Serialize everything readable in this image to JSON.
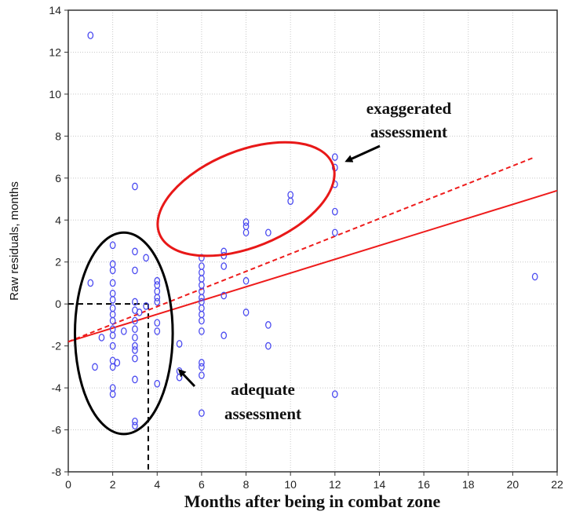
{
  "chart_data": {
    "type": "scatter",
    "xlabel": "Months after being in combat zone",
    "ylabel": "Raw residuals, months",
    "xlim": [
      0,
      22
    ],
    "ylim": [
      -8,
      14
    ],
    "xticks": [
      "0",
      "2",
      "4",
      "6",
      "8",
      "10",
      "12",
      "14",
      "16",
      "18",
      "20",
      "22"
    ],
    "yticks": [
      "-8",
      "-6",
      "-4",
      "-2",
      "0",
      "2",
      "4",
      "6",
      "8",
      "10",
      "12",
      "14"
    ],
    "grid": true,
    "colors": {
      "points": "#4b4bf0",
      "fit_lines": "#ee1c1c",
      "adequate_ellipse": "#000000",
      "exaggerated_ellipse": "#e81818"
    },
    "points": [
      [
        1,
        12.8
      ],
      [
        1,
        1.0
      ],
      [
        1.2,
        -3.0
      ],
      [
        1.5,
        -1.6
      ],
      [
        2,
        2.8
      ],
      [
        2,
        1.9
      ],
      [
        2,
        1.6
      ],
      [
        2,
        1.0
      ],
      [
        2,
        0.5
      ],
      [
        2,
        0.2
      ],
      [
        2,
        -0.2
      ],
      [
        2,
        -0.5
      ],
      [
        2,
        -0.8
      ],
      [
        2,
        -1.2
      ],
      [
        2,
        -1.5
      ],
      [
        2,
        -2.0
      ],
      [
        2,
        -2.7
      ],
      [
        2,
        -3.0
      ],
      [
        2,
        -4.0
      ],
      [
        2,
        -4.3
      ],
      [
        2.2,
        -2.8
      ],
      [
        2.5,
        -1.3
      ],
      [
        3,
        5.6
      ],
      [
        3,
        2.5
      ],
      [
        3,
        1.6
      ],
      [
        3,
        0.1
      ],
      [
        3,
        -0.3
      ],
      [
        3,
        -0.8
      ],
      [
        3,
        -1.2
      ],
      [
        3,
        -1.6
      ],
      [
        3,
        -2.0
      ],
      [
        3,
        -2.2
      ],
      [
        3,
        -2.6
      ],
      [
        3,
        -3.6
      ],
      [
        3,
        -5.6
      ],
      [
        3,
        -5.8
      ],
      [
        3.2,
        -0.4
      ],
      [
        3.5,
        -0.1
      ],
      [
        3.5,
        2.2
      ],
      [
        4,
        1.1
      ],
      [
        4,
        0.9
      ],
      [
        4,
        0.6
      ],
      [
        4,
        0.3
      ],
      [
        4,
        0.1
      ],
      [
        4,
        -0.9
      ],
      [
        4,
        -1.3
      ],
      [
        4,
        -3.8
      ],
      [
        5,
        -3.2
      ],
      [
        5,
        -3.5
      ],
      [
        5,
        -1.9
      ],
      [
        6,
        2.2
      ],
      [
        6,
        1.8
      ],
      [
        6,
        1.5
      ],
      [
        6,
        1.2
      ],
      [
        6,
        0.9
      ],
      [
        6,
        0.6
      ],
      [
        6,
        0.3
      ],
      [
        6,
        0.1
      ],
      [
        6,
        -0.2
      ],
      [
        6,
        -0.5
      ],
      [
        6,
        -0.8
      ],
      [
        6,
        -1.3
      ],
      [
        6,
        -2.8
      ],
      [
        6,
        -3.0
      ],
      [
        6,
        -3.4
      ],
      [
        6,
        -5.2
      ],
      [
        7,
        2.5
      ],
      [
        7,
        2.3
      ],
      [
        7,
        1.8
      ],
      [
        7,
        0.4
      ],
      [
        7,
        -1.5
      ],
      [
        8,
        3.9
      ],
      [
        8,
        3.7
      ],
      [
        8,
        3.4
      ],
      [
        8,
        1.1
      ],
      [
        8,
        -0.4
      ],
      [
        9,
        3.4
      ],
      [
        9,
        -1.0
      ],
      [
        9,
        -2.0
      ],
      [
        10,
        5.2
      ],
      [
        10,
        4.9
      ],
      [
        12,
        7.0
      ],
      [
        12,
        6.5
      ],
      [
        12,
        5.7
      ],
      [
        12,
        4.4
      ],
      [
        12,
        3.4
      ],
      [
        12,
        -4.3
      ],
      [
        21,
        1.3
      ]
    ],
    "fit_lines": [
      {
        "style": "solid",
        "x": [
          0,
          22
        ],
        "y": [
          -1.8,
          5.4
        ]
      },
      {
        "style": "dashed",
        "x": [
          0,
          21
        ],
        "y": [
          -1.8,
          7.0
        ]
      }
    ],
    "reference_lines": {
      "x": 3.6,
      "y": 0
    },
    "annotations": [
      {
        "lines": [
          "exaggerated",
          "assessment"
        ],
        "region": {
          "cx": 8.0,
          "cy": 5.0,
          "rx": 4.2,
          "ry": 2.3,
          "rotate": -22
        }
      },
      {
        "lines": [
          "adequate",
          "assessment"
        ],
        "region": {
          "cx": 2.5,
          "cy": -1.4,
          "rx": 2.2,
          "ry": 4.8,
          "rotate": 0
        }
      }
    ]
  }
}
